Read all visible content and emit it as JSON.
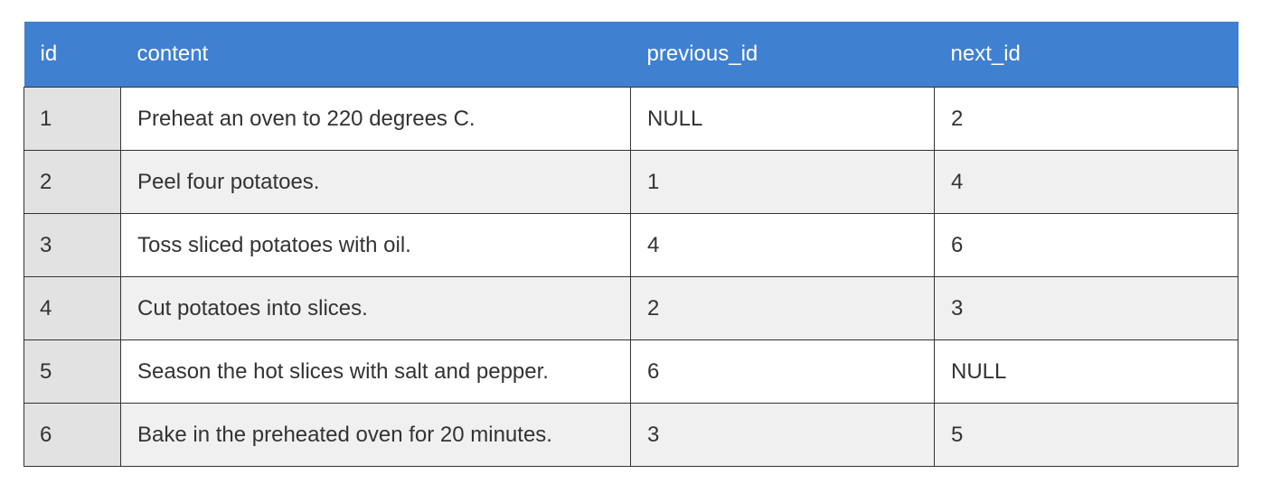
{
  "table": {
    "headers": [
      "id",
      "content",
      "previous_id",
      "next_id"
    ],
    "rows": [
      [
        "1",
        "Preheat an oven to 220 degrees C.",
        "NULL",
        "2"
      ],
      [
        "2",
        "Peel four potatoes.",
        "1",
        "4"
      ],
      [
        "3",
        "Toss sliced potatoes with oil.",
        "4",
        "6"
      ],
      [
        "4",
        "Cut potatoes into slices.",
        "2",
        "3"
      ],
      [
        "5",
        "Season the hot slices with salt and pepper.",
        "6",
        "NULL"
      ],
      [
        "6",
        "Bake in the preheated oven for 20 minutes.",
        "3",
        "5"
      ]
    ]
  },
  "colors": {
    "header_bg": "#4080d0",
    "header_text": "#ffffff",
    "id_column_bg": "#e2e2e2",
    "row_alt_bg": "#f0f0f0",
    "border": "#333333"
  }
}
